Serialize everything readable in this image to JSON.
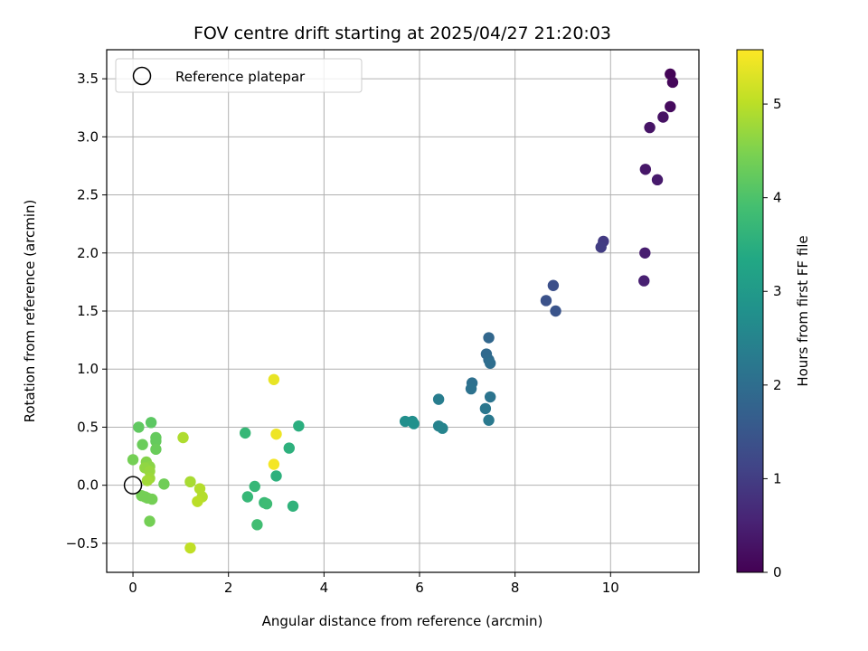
{
  "chart_data": {
    "type": "scatter",
    "title": "FOV centre drift starting at 2025/04/27 21:20:03",
    "xlabel": "Angular distance from reference (arcmin)",
    "ylabel": "Rotation from reference (arcmin)",
    "xlim": [
      -0.55,
      11.85
    ],
    "ylim": [
      -0.75,
      3.75
    ],
    "xticks": [
      0,
      2,
      4,
      6,
      8,
      10
    ],
    "yticks": [
      -0.5,
      0.0,
      0.5,
      1.0,
      1.5,
      2.0,
      2.5,
      3.0,
      3.5
    ],
    "xtick_labels": [
      "0",
      "2",
      "4",
      "6",
      "8",
      "10"
    ],
    "ytick_labels": [
      "−0.5",
      "0.0",
      "0.5",
      "1.0",
      "1.5",
      "2.0",
      "2.5",
      "3.0",
      "3.5"
    ],
    "grid": true,
    "legend": {
      "placement": "upper left",
      "entries": [
        "Reference platepar"
      ]
    },
    "colorbar": {
      "label": "Hours from first FF file",
      "colormap": "viridis",
      "range": [
        0,
        5.58
      ],
      "ticks": [
        0,
        1,
        2,
        3,
        4,
        5
      ],
      "tick_labels": [
        "0",
        "1",
        "2",
        "3",
        "4",
        "5"
      ]
    },
    "reference_point": {
      "x": 0.0,
      "y": 0.0,
      "label": "Reference platepar"
    },
    "points": [
      {
        "x": 11.25,
        "y": 3.54,
        "hours": 0.05
      },
      {
        "x": 11.3,
        "y": 3.47,
        "hours": 0.1
      },
      {
        "x": 11.25,
        "y": 3.26,
        "hours": 0.15
      },
      {
        "x": 11.1,
        "y": 3.17,
        "hours": 0.25
      },
      {
        "x": 10.82,
        "y": 3.08,
        "hours": 0.3
      },
      {
        "x": 10.73,
        "y": 2.72,
        "hours": 0.35
      },
      {
        "x": 10.98,
        "y": 2.63,
        "hours": 0.4
      },
      {
        "x": 10.72,
        "y": 2.0,
        "hours": 0.45
      },
      {
        "x": 10.7,
        "y": 1.76,
        "hours": 0.5
      },
      {
        "x": 9.85,
        "y": 2.1,
        "hours": 0.95
      },
      {
        "x": 9.8,
        "y": 2.05,
        "hours": 1.0
      },
      {
        "x": 8.8,
        "y": 1.72,
        "hours": 1.35
      },
      {
        "x": 8.65,
        "y": 1.59,
        "hours": 1.4
      },
      {
        "x": 8.85,
        "y": 1.5,
        "hours": 1.45
      },
      {
        "x": 7.45,
        "y": 1.27,
        "hours": 1.85
      },
      {
        "x": 7.4,
        "y": 1.13,
        "hours": 1.9
      },
      {
        "x": 7.45,
        "y": 1.08,
        "hours": 1.95
      },
      {
        "x": 7.48,
        "y": 1.05,
        "hours": 2.0
      },
      {
        "x": 7.1,
        "y": 0.88,
        "hours": 2.05
      },
      {
        "x": 7.08,
        "y": 0.83,
        "hours": 2.1
      },
      {
        "x": 7.48,
        "y": 0.76,
        "hours": 2.15
      },
      {
        "x": 7.38,
        "y": 0.66,
        "hours": 2.2
      },
      {
        "x": 7.45,
        "y": 0.56,
        "hours": 2.25
      },
      {
        "x": 6.4,
        "y": 0.74,
        "hours": 2.35
      },
      {
        "x": 6.4,
        "y": 0.51,
        "hours": 2.45
      },
      {
        "x": 6.48,
        "y": 0.49,
        "hours": 2.5
      },
      {
        "x": 5.85,
        "y": 0.55,
        "hours": 2.7
      },
      {
        "x": 5.7,
        "y": 0.55,
        "hours": 2.75
      },
      {
        "x": 5.88,
        "y": 0.53,
        "hours": 2.8
      },
      {
        "x": 3.47,
        "y": 0.51,
        "hours": 3.5
      },
      {
        "x": 3.27,
        "y": 0.32,
        "hours": 3.55
      },
      {
        "x": 3.0,
        "y": 0.08,
        "hours": 3.55
      },
      {
        "x": 3.35,
        "y": -0.18,
        "hours": 3.6
      },
      {
        "x": 2.35,
        "y": 0.45,
        "hours": 3.7
      },
      {
        "x": 2.55,
        "y": -0.01,
        "hours": 3.7
      },
      {
        "x": 2.4,
        "y": -0.1,
        "hours": 3.7
      },
      {
        "x": 2.75,
        "y": -0.15,
        "hours": 3.75
      },
      {
        "x": 2.8,
        "y": -0.16,
        "hours": 3.8
      },
      {
        "x": 2.6,
        "y": -0.34,
        "hours": 3.85
      },
      {
        "x": 0.38,
        "y": 0.54,
        "hours": 4.15
      },
      {
        "x": 0.12,
        "y": 0.5,
        "hours": 4.2
      },
      {
        "x": 0.48,
        "y": 0.41,
        "hours": 4.25
      },
      {
        "x": 0.48,
        "y": 0.38,
        "hours": 4.25
      },
      {
        "x": 0.2,
        "y": 0.35,
        "hours": 4.3
      },
      {
        "x": 0.48,
        "y": 0.31,
        "hours": 4.3
      },
      {
        "x": 0.65,
        "y": 0.01,
        "hours": 4.35
      },
      {
        "x": 0.0,
        "y": 0.22,
        "hours": 4.4
      },
      {
        "x": 0.18,
        "y": -0.09,
        "hours": 4.4
      },
      {
        "x": 0.25,
        "y": -0.1,
        "hours": 4.4
      },
      {
        "x": 0.3,
        "y": -0.11,
        "hours": 4.4
      },
      {
        "x": 0.4,
        "y": -0.12,
        "hours": 4.4
      },
      {
        "x": 0.35,
        "y": -0.31,
        "hours": 4.4
      },
      {
        "x": 0.28,
        "y": 0.2,
        "hours": 4.55
      },
      {
        "x": 0.35,
        "y": 0.16,
        "hours": 4.6
      },
      {
        "x": 0.25,
        "y": 0.15,
        "hours": 4.65
      },
      {
        "x": 0.35,
        "y": 0.12,
        "hours": 4.7
      },
      {
        "x": 0.35,
        "y": 0.06,
        "hours": 4.75
      },
      {
        "x": 0.3,
        "y": 0.04,
        "hours": 4.8
      },
      {
        "x": 1.05,
        "y": 0.41,
        "hours": 4.9
      },
      {
        "x": 1.2,
        "y": 0.03,
        "hours": 4.85
      },
      {
        "x": 1.4,
        "y": -0.03,
        "hours": 4.95
      },
      {
        "x": 1.45,
        "y": -0.1,
        "hours": 4.95
      },
      {
        "x": 1.35,
        "y": -0.14,
        "hours": 5.0
      },
      {
        "x": 1.2,
        "y": -0.54,
        "hours": 5.05
      },
      {
        "x": 2.95,
        "y": 0.91,
        "hours": 5.4
      },
      {
        "x": 3.0,
        "y": 0.44,
        "hours": 5.45
      },
      {
        "x": 2.95,
        "y": 0.18,
        "hours": 5.5
      }
    ]
  }
}
